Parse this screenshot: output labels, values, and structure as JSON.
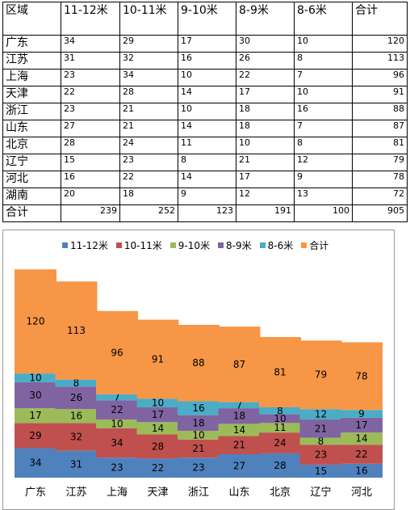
{
  "table": {
    "headers": [
      "区域",
      "11-12米",
      "10-11米",
      "9-10米",
      "8-9米",
      "8-6米",
      "合计"
    ],
    "rows": [
      [
        "广东",
        "34",
        "29",
        "17",
        "30",
        "10",
        "120"
      ],
      [
        "江苏",
        "31",
        "32",
        "16",
        "26",
        "8",
        "113"
      ],
      [
        "上海",
        "23",
        "34",
        "10",
        "22",
        "7",
        "96"
      ],
      [
        "天津",
        "22",
        "28",
        "14",
        "17",
        "10",
        "91"
      ],
      [
        "浙江",
        "23",
        "21",
        "10",
        "18",
        "16",
        "88"
      ],
      [
        "山东",
        "27",
        "21",
        "14",
        "18",
        "7",
        "87"
      ],
      [
        "北京",
        "28",
        "24",
        "11",
        "10",
        "8",
        "81"
      ],
      [
        "辽宁",
        "15",
        "23",
        "8",
        "21",
        "12",
        "79"
      ],
      [
        "河北",
        "16",
        "22",
        "14",
        "17",
        "9",
        "78"
      ],
      [
        "湖南",
        "20",
        "18",
        "9",
        "12",
        "13",
        "72"
      ],
      [
        "合计",
        "239",
        "252",
        "123",
        "191",
        "100",
        "905"
      ]
    ]
  },
  "chart_data": {
    "type": "bar",
    "stacked": true,
    "categories": [
      "广东",
      "江苏",
      "上海",
      "天津",
      "浙江",
      "山东",
      "北京",
      "辽宁",
      "河北"
    ],
    "series": [
      {
        "name": "11-12米",
        "color": "#4f81bd",
        "values": [
          34,
          31,
          23,
          22,
          23,
          27,
          28,
          15,
          16
        ]
      },
      {
        "name": "10-11米",
        "color": "#c0504d",
        "values": [
          29,
          32,
          34,
          28,
          21,
          21,
          24,
          23,
          22
        ]
      },
      {
        "name": "9-10米",
        "color": "#9bbb59",
        "values": [
          17,
          16,
          10,
          14,
          10,
          14,
          11,
          8,
          14
        ]
      },
      {
        "name": "8-9米",
        "color": "#8064a2",
        "values": [
          30,
          26,
          22,
          17,
          18,
          18,
          10,
          21,
          17
        ]
      },
      {
        "name": "8-6米",
        "color": "#4bacc6",
        "values": [
          10,
          8,
          7,
          10,
          16,
          7,
          8,
          12,
          9
        ]
      },
      {
        "name": "合计",
        "color": "#f79646",
        "values": [
          120,
          113,
          96,
          91,
          88,
          87,
          81,
          79,
          78
        ]
      }
    ],
    "legend_position": "top",
    "grid": false
  }
}
